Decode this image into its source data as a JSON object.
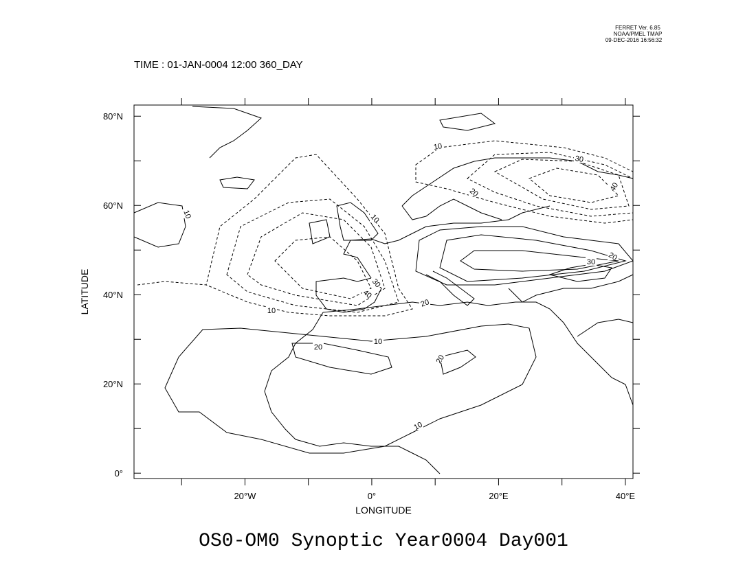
{
  "header": {
    "software": "FERRET Ver. 6.85",
    "org": "NOAA/PMEL TMAP",
    "timestamp": "09-DEC-2016 16:56:32",
    "time": "TIME : 01-JAN-0004 12:00 360_DAY"
  },
  "map": {
    "title": "OS0-OM0 Synoptic Year0004 Day001",
    "xlabel": "LONGITUDE",
    "ylabel": "LATITUDE",
    "xlim": [
      -37.5,
      41.2
    ],
    "ylim": [
      -1.2,
      82.5
    ],
    "xticks": [
      {
        "value": -20,
        "label": "20°W"
      },
      {
        "value": 0,
        "label": "0°"
      },
      {
        "value": 20,
        "label": "20°E"
      },
      {
        "value": 40,
        "label": "40°E"
      }
    ],
    "xminor": [
      -30,
      -10,
      10,
      30
    ],
    "yticks": [
      {
        "value": 0,
        "label": "0°"
      },
      {
        "value": 20,
        "label": "20°N"
      },
      {
        "value": 40,
        "label": "40°N"
      },
      {
        "value": 60,
        "label": "60°N"
      },
      {
        "value": 80,
        "label": "80°N"
      }
    ],
    "yminor": [
      10,
      30,
      50,
      70
    ],
    "contour_labels": [
      10,
      10,
      10,
      10,
      10,
      10,
      20,
      20,
      20,
      20,
      20,
      30,
      30,
      30,
      40,
      40
    ]
  }
}
